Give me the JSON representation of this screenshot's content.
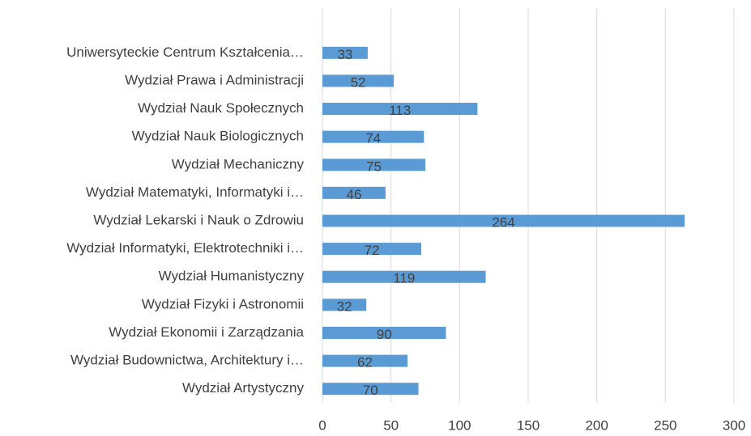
{
  "chart_data": {
    "type": "bar",
    "orientation": "horizontal",
    "categories": [
      "Uniwersyteckie Centrum Kształcenia…",
      "Wydział Prawa i Administracji",
      "Wydział Nauk Społecznych",
      "Wydział Nauk Biologicznych",
      "Wydział Mechaniczny",
      "Wydział Matematyki, Informatyki i…",
      "Wydział Lekarski i Nauk o Zdrowiu",
      "Wydział Informatyki, Elektrotechniki i…",
      "Wydział Humanistyczny",
      "Wydział Fizyki i Astronomii",
      "Wydział Ekonomii i Zarządzania",
      "Wydział Budownictwa, Architektury i…",
      "Wydział Artystyczny"
    ],
    "values": [
      33,
      52,
      113,
      74,
      75,
      46,
      264,
      72,
      119,
      32,
      90,
      62,
      70
    ],
    "color": "#5b9bd5",
    "xlim": [
      0,
      300
    ],
    "xticks": [
      0,
      50,
      100,
      150,
      200,
      250,
      300
    ],
    "grid": true
  }
}
